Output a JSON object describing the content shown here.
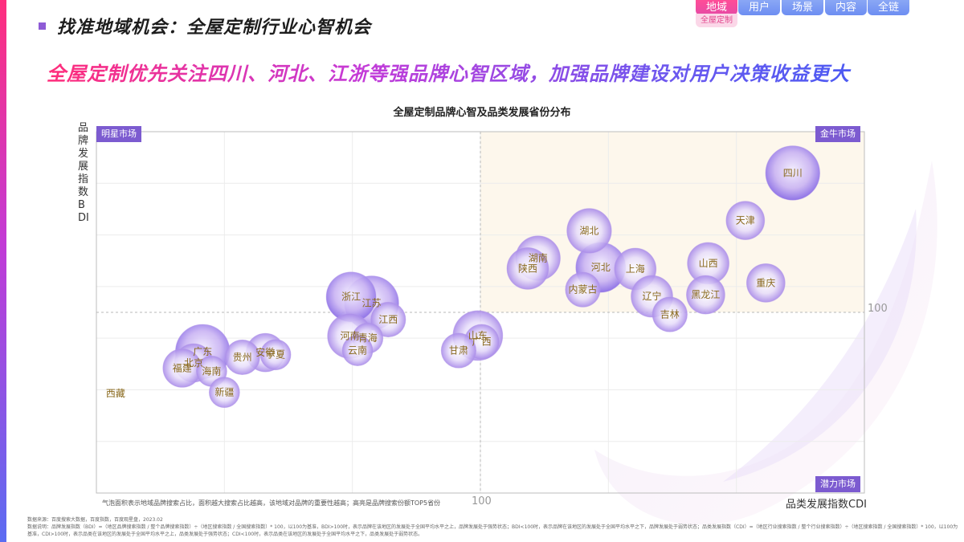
{
  "header": {
    "title": "找准地域机会：全屋定制行业心智机会",
    "subtitle": "全屋定制优先关注四川、河北、江浙等强品牌心智区域，加强品牌建设对用户决策收益更大"
  },
  "nav": {
    "tabs": [
      "地域",
      "用户",
      "场景",
      "内容",
      "全链"
    ],
    "active_tab": "地域",
    "sub_label": "全屋定制"
  },
  "quadrants": {
    "top_left": "明星市场",
    "top_right": "金牛市场",
    "bottom_right": "潜力市场"
  },
  "notes": {
    "bubble_note": "气泡面积表示地域品牌搜索占比，面积越大搜索占比越高，该地域对品牌的重要性越高；高亮是品牌搜索份额TOP5省份",
    "source": "数据来源：百度搜索大数据，百度指数，百度观星盘，2023.02",
    "explanation": "数据说明：品牌发展指数（BDI）=（地区品牌搜索指数 / 整个品牌搜索指数）÷（地区搜索指数 / 全国搜索指数）* 100，以100为基准，BDI>100时，表示品牌在该地区的发展处于全国平均水平之上，品牌发展处于强势状态；BDI<100时，表示品牌在该地区的发展处于全国平均水平之下，品牌发展处于弱势状态；品类发展指数（CDI）=（地区行业搜索指数 / 整个行业搜索指数）÷（地区搜索指数 / 全国搜索指数）* 100，以100为基准，CDI>100时，表示品类在该地区的发展处于全国平均水平之上，品类发展处于强势状态；CDI<100时，表示品类在该地区的发展处于全国平均水平之下，品类发展处于弱势状态。"
  },
  "colors": {
    "accent_purple": "#7c5bd0",
    "bubble_label": "#8a6a1e",
    "quadrant_highlight": "#fdf7ec"
  },
  "chart_data": {
    "type": "scatter",
    "title": "全屋定制品牌心智及品类发展省份分布",
    "xlabel": "品类发展指数CDI",
    "ylabel": "品牌发展指数BDI",
    "x_ref": 100,
    "y_ref": 100,
    "x_tick_label": "100",
    "y_tick_label": "100",
    "xlim": [
      70,
      130
    ],
    "ylim": [
      65,
      135
    ],
    "grid": true,
    "points": [
      {
        "name": "四川",
        "x": 124.4,
        "y": 127.0,
        "size": 5,
        "top5": true
      },
      {
        "name": "天津",
        "x": 120.7,
        "y": 117.8,
        "size": 2,
        "top5": false
      },
      {
        "name": "湖北",
        "x": 108.5,
        "y": 115.8,
        "size": 3,
        "top5": false
      },
      {
        "name": "湖南",
        "x": 104.5,
        "y": 110.5,
        "size": 3,
        "top5": false
      },
      {
        "name": "陕西",
        "x": 103.7,
        "y": 108.5,
        "size": 2.5,
        "top5": false
      },
      {
        "name": "河北",
        "x": 109.4,
        "y": 108.7,
        "size": 4,
        "top5": true
      },
      {
        "name": "上海",
        "x": 112.1,
        "y": 108.4,
        "size": 2.5,
        "top5": false
      },
      {
        "name": "山西",
        "x": 117.8,
        "y": 109.5,
        "size": 2.5,
        "top5": false
      },
      {
        "name": "重庆",
        "x": 122.3,
        "y": 105.7,
        "size": 2,
        "top5": false
      },
      {
        "name": "内蒙古",
        "x": 108.0,
        "y": 104.4,
        "size": 1.5,
        "top5": false
      },
      {
        "name": "辽宁",
        "x": 113.4,
        "y": 103.1,
        "size": 2.5,
        "top5": false
      },
      {
        "name": "黑龙江",
        "x": 117.6,
        "y": 103.4,
        "size": 2,
        "top5": false
      },
      {
        "name": "吉林",
        "x": 114.8,
        "y": 99.6,
        "size": 1.5,
        "top5": false
      },
      {
        "name": "浙江",
        "x": 89.9,
        "y": 103.0,
        "size": 4,
        "top5": true
      },
      {
        "name": "江苏",
        "x": 91.5,
        "y": 101.8,
        "size": 5,
        "top5": true
      },
      {
        "name": "江西",
        "x": 92.8,
        "y": 98.6,
        "size": 1.5,
        "top5": false
      },
      {
        "name": "山东",
        "x": 99.8,
        "y": 95.5,
        "size": 4,
        "top5": false
      },
      {
        "name": "河南",
        "x": 89.8,
        "y": 95.4,
        "size": 3,
        "top5": false
      },
      {
        "name": "青海",
        "x": 91.2,
        "y": 95.0,
        "size": 1,
        "top5": false
      },
      {
        "name": "广西",
        "x": 100.1,
        "y": 94.3,
        "size": 1.5,
        "top5": false
      },
      {
        "name": "云南",
        "x": 90.4,
        "y": 92.6,
        "size": 1,
        "top5": false
      },
      {
        "name": "甘肃",
        "x": 98.3,
        "y": 92.6,
        "size": 1.5,
        "top5": false
      },
      {
        "name": "广东",
        "x": 78.3,
        "y": 92.4,
        "size": 5,
        "top5": true
      },
      {
        "name": "安徽",
        "x": 83.2,
        "y": 92.2,
        "size": 2,
        "top5": false
      },
      {
        "name": "贵州",
        "x": 81.4,
        "y": 91.3,
        "size": 1.5,
        "top5": false
      },
      {
        "name": "宁夏",
        "x": 84.0,
        "y": 91.8,
        "size": 1,
        "top5": false
      },
      {
        "name": "北京",
        "x": 77.6,
        "y": 90.2,
        "size": 2,
        "top5": false
      },
      {
        "name": "福建",
        "x": 76.7,
        "y": 89.2,
        "size": 2,
        "top5": false
      },
      {
        "name": "海南",
        "x": 79.0,
        "y": 88.6,
        "size": 1,
        "top5": false
      },
      {
        "name": "新疆",
        "x": 80.0,
        "y": 84.5,
        "size": 1,
        "top5": false
      },
      {
        "name": "西藏",
        "x": 71.5,
        "y": 84.3,
        "size": 0,
        "top5": false
      }
    ]
  }
}
